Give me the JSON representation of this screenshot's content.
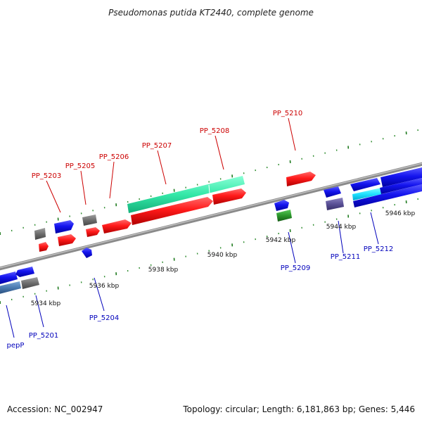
{
  "title": "Pseudomonas putida KT2440, complete genome",
  "footer": {
    "accession": "Accession: NC_002947",
    "summary": "Topology: circular; Length: 6,181,863 bp; Genes: 5,446"
  },
  "kbp_ticks": [
    "5934 kbp",
    "5936 kbp",
    "5938 kbp",
    "5940 kbp",
    "5942 kbp",
    "5944 kbp",
    "5946 kbp"
  ],
  "gene_labels": {
    "top": [
      "PP_5203",
      "PP_5205",
      "PP_5206",
      "PP_5207",
      "PP_5208",
      "PP_5210"
    ],
    "bottom": [
      "pepP",
      "PP_5201",
      "PP_5204",
      "PP_5209",
      "PP_5211",
      "PP_5212"
    ]
  },
  "colors": {
    "forward_gene": "#ff1010",
    "reverse_gene": "#1010ee",
    "rna": "#40f0b0",
    "other": "#707070",
    "label_top": "#cc0000",
    "label_bottom": "#0000bb",
    "backbone": "#909090",
    "tick": "#228822"
  }
}
